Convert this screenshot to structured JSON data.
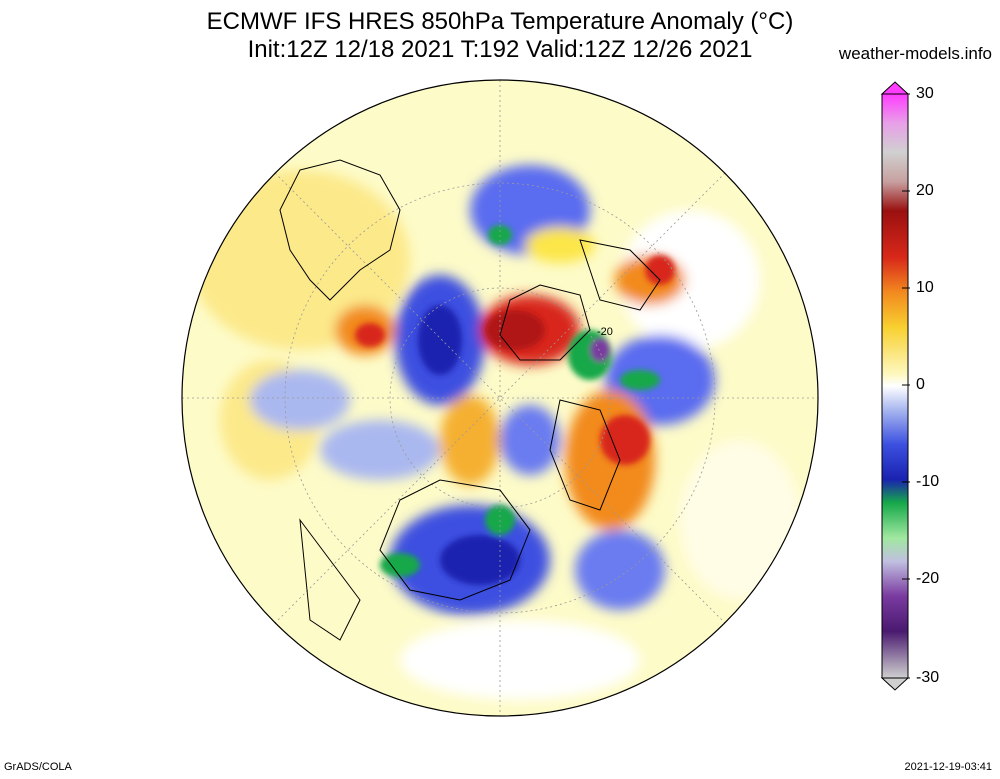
{
  "title_line1": "ECMWF IFS HRES 850hPa Temperature Anomaly (°C)",
  "title_line2": "Init:12Z 12/18 2021 T:192 Valid:12Z 12/26 2021",
  "site": "weather-models.info",
  "credit": "GrADS/COLA",
  "timestamp": "2021-12-19-03:41",
  "map_label": "-20",
  "colorbar": {
    "labels": [
      "30",
      "20",
      "10",
      "0",
      "-10",
      "-20",
      "-30"
    ],
    "min": -30,
    "max": 30
  },
  "colors": {
    "background_map": "#fdfbc8",
    "warm_yellow": "#fce64a",
    "orange": "#f28a1f",
    "red": "#d8281a",
    "dark_red": "#9a1010",
    "light_blue": "#aab8f0",
    "blue": "#3c50e0",
    "dark_blue": "#1a22b0",
    "green": "#16a84a",
    "purple": "#7a3aa0"
  }
}
